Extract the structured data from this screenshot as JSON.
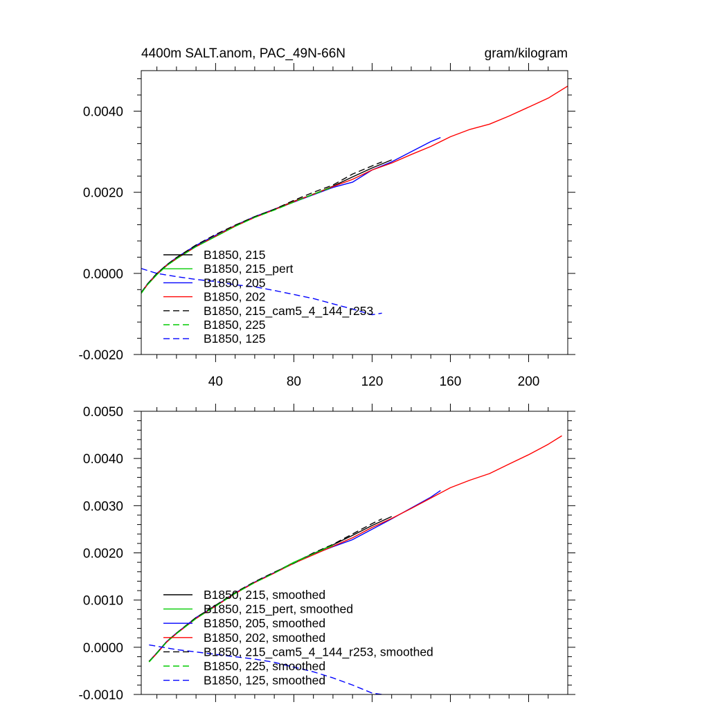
{
  "chart_data": [
    {
      "type": "line",
      "title": "4400m SALT.anom, PAC_49N-66N",
      "units": "gram/kilogram",
      "xlim": [
        2,
        220
      ],
      "ylim": [
        -0.002,
        0.005
      ],
      "xticks": [
        40,
        80,
        120,
        160,
        200
      ],
      "xtick_labels": [
        "40",
        "80",
        "120",
        "160",
        "200"
      ],
      "yticks": [
        -0.002,
        0,
        0.002,
        0.004
      ],
      "ytick_labels": [
        "-0.0020",
        "0.0000",
        "0.0020",
        "0.0040"
      ],
      "legend_position": "bottom-left",
      "series": [
        {
          "name": "B1850, 215",
          "color": "#000000",
          "dash": "solid",
          "x": [
            2,
            5,
            10,
            15,
            20,
            30,
            40,
            50,
            60,
            70,
            80,
            90,
            100,
            110,
            120,
            130
          ],
          "y": [
            -0.00048,
            -0.00028,
            -2e-05,
            0.0002,
            0.00038,
            0.00068,
            0.00093,
            0.00118,
            0.0014,
            0.00158,
            0.00178,
            0.00195,
            0.00215,
            0.00238,
            0.0026,
            0.0028
          ]
        },
        {
          "name": "B1850, 215_pert",
          "color": "#00cc00",
          "dash": "solid",
          "x": [
            2,
            5,
            10,
            15,
            20,
            30,
            40,
            50,
            60,
            70,
            80,
            90,
            100
          ],
          "y": [
            -0.00049,
            -0.00029,
            -3e-05,
            0.00019,
            0.00036,
            0.00066,
            0.00091,
            0.00116,
            0.00138,
            0.00157,
            0.00176,
            0.00196,
            0.00214
          ]
        },
        {
          "name": "B1850, 205",
          "color": "#0000ff",
          "dash": "solid",
          "x": [
            2,
            5,
            10,
            15,
            20,
            30,
            40,
            50,
            60,
            70,
            80,
            90,
            100,
            110,
            120,
            130,
            140,
            150,
            155
          ],
          "y": [
            -0.00048,
            -0.00027,
            0.0,
            0.00021,
            0.00039,
            0.00069,
            0.00094,
            0.00118,
            0.0014,
            0.00158,
            0.00176,
            0.00194,
            0.00212,
            0.00225,
            0.00255,
            0.00275,
            0.003,
            0.00325,
            0.00335
          ]
        },
        {
          "name": "B1850, 202",
          "color": "#ff0000",
          "dash": "solid",
          "x": [
            2,
            5,
            10,
            15,
            20,
            30,
            40,
            50,
            60,
            70,
            80,
            90,
            100,
            110,
            120,
            130,
            140,
            150,
            160,
            170,
            180,
            190,
            200,
            210,
            220
          ],
          "y": [
            -0.00048,
            -0.00028,
            -1e-05,
            0.0002,
            0.00037,
            0.00066,
            0.00092,
            0.00117,
            0.00138,
            0.00157,
            0.00177,
            0.00195,
            0.00214,
            0.00232,
            0.00255,
            0.00272,
            0.00293,
            0.00313,
            0.00337,
            0.00355,
            0.00368,
            0.00388,
            0.0041,
            0.00432,
            0.00462
          ]
        },
        {
          "name": "B1850, 215_cam5_4_144_r253",
          "color": "#000000",
          "dash": "dashed",
          "x": [
            2,
            5,
            10,
            15,
            20,
            30,
            40,
            50,
            60,
            70,
            80,
            90,
            100,
            110,
            120,
            125
          ],
          "y": [
            -0.00047,
            -0.00027,
            0.0,
            0.00021,
            0.00039,
            0.0007,
            0.00096,
            0.00119,
            0.0014,
            0.00158,
            0.0018,
            0.002,
            0.00218,
            0.00245,
            0.00265,
            0.00275
          ]
        },
        {
          "name": "B1850, 225",
          "color": "#00cc00",
          "dash": "dashed",
          "x": [
            2,
            5,
            10,
            15,
            20,
            30,
            40,
            50,
            60,
            70,
            80,
            90,
            100
          ],
          "y": [
            -0.00049,
            -0.00029,
            -3e-05,
            0.00019,
            0.00036,
            0.00066,
            0.00091,
            0.00116,
            0.00138,
            0.00156,
            0.00176,
            0.00195,
            0.00213
          ]
        },
        {
          "name": "B1850, 125",
          "color": "#0000ff",
          "dash": "dashed",
          "x": [
            2,
            10,
            20,
            30,
            40,
            50,
            60,
            70,
            80,
            90,
            100,
            110,
            120,
            125
          ],
          "y": [
            0.00012,
            0.0,
            -8e-05,
            -0.00015,
            -0.0002,
            -0.00028,
            -0.00033,
            -0.00042,
            -0.00052,
            -0.00062,
            -0.00075,
            -0.00088,
            -0.00102,
            -0.00098
          ]
        }
      ]
    },
    {
      "type": "line",
      "xlim": [
        2,
        220
      ],
      "ylim": [
        -0.001,
        0.005
      ],
      "xticks": [
        40,
        80,
        120,
        160,
        200
      ],
      "yticks": [
        -0.001,
        0,
        0.001,
        0.002,
        0.003,
        0.004,
        0.005
      ],
      "ytick_labels": [
        "-0.0010",
        "0.0000",
        "0.0010",
        "0.0020",
        "0.0030",
        "0.0040",
        "0.0050"
      ],
      "legend_position": "bottom-left",
      "series": [
        {
          "name": "B1850, 215, smoothed",
          "color": "#000000",
          "dash": "solid",
          "x": [
            6,
            10,
            15,
            20,
            30,
            40,
            50,
            60,
            70,
            80,
            90,
            100,
            110,
            120,
            130
          ],
          "y": [
            -0.0003,
            -0.00012,
            0.00012,
            0.0003,
            0.00062,
            0.00088,
            0.00115,
            0.00138,
            0.00158,
            0.0018,
            0.00198,
            0.00217,
            0.00237,
            0.00258,
            0.00277
          ]
        },
        {
          "name": "B1850, 215_pert, smoothed",
          "color": "#00cc00",
          "dash": "solid",
          "x": [
            6,
            10,
            15,
            20,
            30,
            40,
            50,
            60,
            70,
            80,
            90,
            100
          ],
          "y": [
            -0.00031,
            -0.00013,
            0.00011,
            0.00029,
            0.00061,
            0.00088,
            0.00114,
            0.00138,
            0.00158,
            0.0018,
            0.00199,
            0.00217
          ]
        },
        {
          "name": "B1850, 205, smoothed",
          "color": "#0000ff",
          "dash": "solid",
          "x": [
            6,
            10,
            15,
            20,
            30,
            40,
            50,
            60,
            70,
            80,
            90,
            100,
            110,
            120,
            130,
            140,
            150,
            155
          ],
          "y": [
            -0.0003,
            -0.00012,
            0.00012,
            0.0003,
            0.00063,
            0.00088,
            0.00115,
            0.00138,
            0.00158,
            0.00178,
            0.00197,
            0.00213,
            0.00228,
            0.0025,
            0.00272,
            0.00295,
            0.00318,
            0.00332
          ]
        },
        {
          "name": "B1850, 202, smoothed",
          "color": "#ff0000",
          "dash": "solid",
          "x": [
            6,
            10,
            15,
            20,
            30,
            40,
            50,
            60,
            70,
            80,
            90,
            100,
            110,
            120,
            130,
            140,
            150,
            160,
            170,
            180,
            190,
            200,
            210,
            217
          ],
          "y": [
            -0.0003,
            -0.00013,
            0.00011,
            0.00029,
            0.00061,
            0.00087,
            0.00114,
            0.00137,
            0.00157,
            0.00178,
            0.00196,
            0.00214,
            0.00232,
            0.00254,
            0.00273,
            0.00294,
            0.00316,
            0.00338,
            0.00354,
            0.00368,
            0.00388,
            0.00408,
            0.0043,
            0.00448
          ]
        },
        {
          "name": "B1850, 215_cam5_4_144_r253, smoothed",
          "color": "#000000",
          "dash": "dashed",
          "x": [
            6,
            10,
            15,
            20,
            30,
            40,
            50,
            60,
            70,
            80,
            90,
            100,
            110,
            120,
            125
          ],
          "y": [
            -0.0003,
            -0.00012,
            0.00012,
            0.0003,
            0.00063,
            0.00089,
            0.00116,
            0.00139,
            0.00159,
            0.00178,
            0.002,
            0.00218,
            0.0024,
            0.00262,
            0.00272
          ]
        },
        {
          "name": "B1850, 225, smoothed",
          "color": "#00cc00",
          "dash": "dashed",
          "x": [
            6,
            10,
            15,
            20,
            30,
            40,
            50,
            60,
            70,
            80,
            90,
            100
          ],
          "y": [
            -0.00031,
            -0.00013,
            0.00011,
            0.00029,
            0.00061,
            0.00087,
            0.00114,
            0.00137,
            0.00157,
            0.00179,
            0.00198,
            0.00216
          ]
        },
        {
          "name": "B1850, 125, smoothed",
          "color": "#0000ff",
          "dash": "dashed",
          "x": [
            6,
            20,
            30,
            40,
            50,
            60,
            70,
            80,
            90,
            100,
            110,
            120,
            125
          ],
          "y": [
            5e-05,
            -5e-05,
            -0.0001,
            -0.00015,
            -0.0002,
            -0.00025,
            -0.00032,
            -0.00042,
            -0.00052,
            -0.00065,
            -0.0008,
            -0.00097,
            -0.001
          ]
        }
      ]
    }
  ]
}
